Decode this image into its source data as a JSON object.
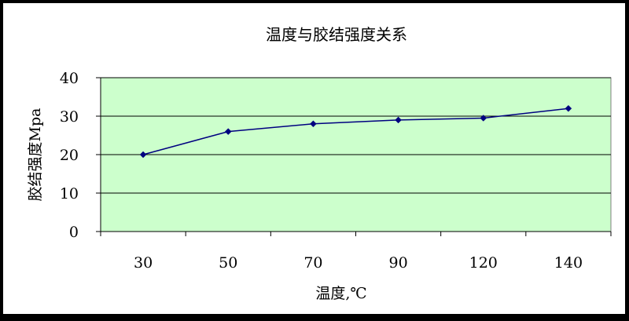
{
  "chart_data": {
    "type": "line",
    "title": "温度与胶结强度关系",
    "xlabel": "温度,℃",
    "ylabel": "胶结强度Mpa",
    "categories": [
      "30",
      "50",
      "70",
      "90",
      "120",
      "140"
    ],
    "series": [
      {
        "values": [
          20,
          26,
          28,
          29,
          29.5,
          32
        ]
      }
    ],
    "ylim": [
      0,
      40
    ],
    "yticks": [
      0,
      10,
      20,
      30,
      40
    ],
    "grid": true,
    "legend": "none",
    "colors": {
      "plot_background": "#ccffcc",
      "line": "#000080",
      "marker": "#000080",
      "gridline": "#000000"
    }
  }
}
